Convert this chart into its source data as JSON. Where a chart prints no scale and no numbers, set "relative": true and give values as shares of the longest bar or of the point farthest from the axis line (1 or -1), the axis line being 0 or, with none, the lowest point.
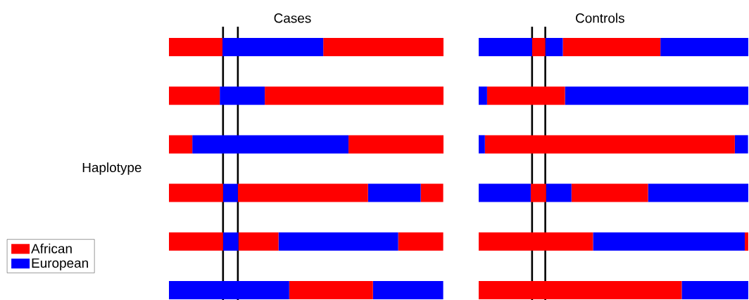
{
  "chart_data": [
    {
      "type": "bar",
      "orientation": "horizontal",
      "stacked": true,
      "relative": true,
      "title": "Cases",
      "ylabel": "Haplotype",
      "legend": "bottom left",
      "categories": [
        null,
        null,
        null,
        null,
        null,
        null
      ],
      "series": [
        {
          "name": "African",
          "color": "#ff0000",
          "values": [
            0.195,
            0.185,
            0.085,
            0.197,
            0.197,
            0
          ]
        },
        {
          "name": "European",
          "color": "#0000ff",
          "values": [
            0.367,
            0.164,
            0.569,
            0.054,
            0.056,
            0.438
          ]
        },
        {
          "color": "#ff0000",
          "values": [
            0.438,
            0.651,
            0.346,
            0.474,
            0.146,
            0.305
          ]
        },
        {
          "color": "#0000ff",
          "values": [
            0,
            0,
            0,
            0.192,
            0.436,
            0.256
          ]
        },
        {
          "color": "#ff0000",
          "values": [
            0,
            0,
            0,
            0.082,
            0.164,
            0
          ]
        }
      ],
      "ref_lines": [
        {
          "axis": "x",
          "value": 0.197,
          "color": "#000000"
        },
        {
          "axis": "x",
          "value": 0.251,
          "color": "#000000"
        }
      ]
    },
    {
      "type": "bar",
      "orientation": "horizontal",
      "stacked": true,
      "relative": true,
      "title": "Controls",
      "categories": [
        null,
        null,
        null,
        null,
        null,
        null
      ],
      "series": [
        {
          "color": "#ff0000",
          "values": [
            0,
            0,
            0,
            0,
            0.424,
            0.753
          ]
        },
        {
          "color": "#0000ff",
          "values": [
            0.198,
            0.031,
            0.023,
            0.193,
            0.563,
            0.247
          ]
        },
        {
          "color": "#ff0000",
          "values": [
            0.049,
            0.289,
            0.927,
            0.057,
            0.013,
            0
          ]
        },
        {
          "color": "#0000ff",
          "values": [
            0.065,
            0.68,
            0.049,
            0.094,
            0,
            0
          ]
        },
        {
          "color": "#ff0000",
          "values": [
            0.362,
            0,
            0,
            0.284,
            0,
            0
          ]
        },
        {
          "color": "#0000ff",
          "values": [
            0.326,
            0,
            0,
            0.372,
            0,
            0
          ]
        }
      ],
      "ref_lines": [
        {
          "axis": "x",
          "value": 0.198,
          "color": "#000000"
        },
        {
          "axis": "x",
          "value": 0.247,
          "color": "#000000"
        }
      ]
    }
  ]
}
